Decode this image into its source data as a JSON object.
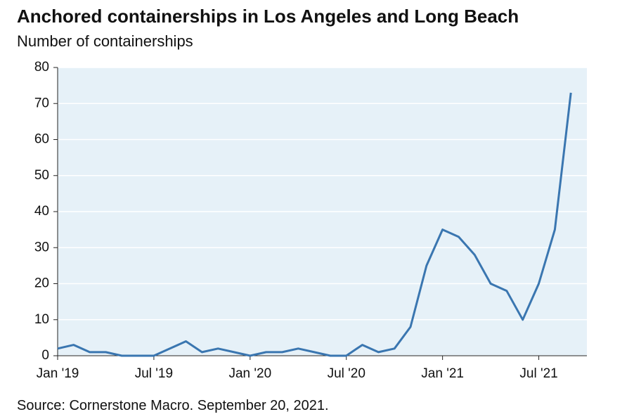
{
  "chart_data": {
    "type": "line",
    "title": "Anchored containerships in Los Angeles and Long Beach",
    "subtitle": "Number of containerships",
    "source": "Source: Cornerstone Macro. September 20, 2021.",
    "x": [
      "2019-01",
      "2019-02",
      "2019-03",
      "2019-04",
      "2019-05",
      "2019-06",
      "2019-07",
      "2019-08",
      "2019-09",
      "2019-10",
      "2019-11",
      "2019-12",
      "2020-01",
      "2020-02",
      "2020-03",
      "2020-04",
      "2020-05",
      "2020-06",
      "2020-07",
      "2020-08",
      "2020-09",
      "2020-10",
      "2020-11",
      "2020-12",
      "2021-01",
      "2021-02",
      "2021-03",
      "2021-04",
      "2021-05",
      "2021-06",
      "2021-07",
      "2021-08",
      "2021-09"
    ],
    "series": [
      {
        "name": "Anchored containerships",
        "color": "#3a76b0",
        "values": [
          2,
          3,
          1,
          1,
          0,
          0,
          0,
          2,
          4,
          1,
          2,
          1,
          0,
          1,
          1,
          2,
          1,
          0,
          0,
          3,
          1,
          2,
          8,
          25,
          35,
          33,
          28,
          20,
          18,
          10,
          20,
          35,
          73
        ]
      }
    ],
    "xlim": [
      "2019-01",
      "2021-10"
    ],
    "xticks": [
      {
        "value": "2019-01",
        "label": "Jan '19"
      },
      {
        "value": "2019-07",
        "label": "Jul '19"
      },
      {
        "value": "2020-01",
        "label": "Jan '20"
      },
      {
        "value": "2020-07",
        "label": "Jul '20"
      },
      {
        "value": "2021-01",
        "label": "Jan '21"
      },
      {
        "value": "2021-07",
        "label": "Jul '21"
      }
    ],
    "ylim": [
      0,
      80
    ],
    "yticks": [
      0,
      10,
      20,
      30,
      40,
      50,
      60,
      70,
      80
    ],
    "grid": true
  }
}
